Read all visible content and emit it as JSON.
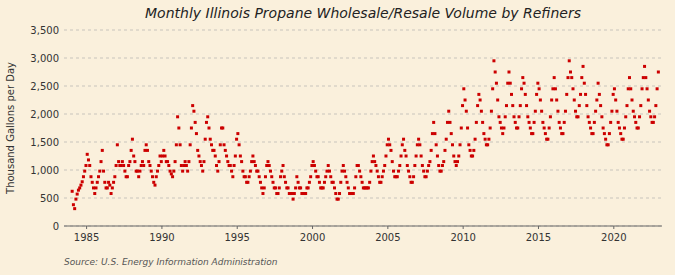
{
  "chart_data": {
    "type": "scatter",
    "title": "Monthly Illinois Propane Wholesale/Resale Volume by Refiners",
    "ylabel": "Thousand Gallons per Day",
    "source": "Source: U.S. Energy Information Administration",
    "color": "#CC0000",
    "marker": "square",
    "grid": true,
    "xlim": [
      1983.5,
      2023.2
    ],
    "xticks": [
      1985,
      1990,
      1995,
      2000,
      2005,
      2010,
      2015,
      2020
    ],
    "ylim": [
      0,
      3500
    ],
    "yticks": [
      0,
      500,
      {
        "value": 1000,
        "label": "1,000"
      },
      {
        "value": 1500,
        "label": "1,500"
      },
      {
        "value": 2000,
        "label": "2,000"
      },
      {
        "value": 2500,
        "label": "2,500"
      },
      {
        "value": 3000,
        "label": "3,000"
      },
      {
        "value": 3500,
        "label": "3,500"
      }
    ],
    "x": [
      1984.0416666666667,
      1984.125,
      1984.2083333333333,
      1984.2916666666667,
      1984.375,
      1984.4583333333333,
      1984.5416666666667,
      1984.625,
      1984.7083333333333,
      1984.7916666666667,
      1984.875,
      1984.9583333333333,
      1985.0416666666667,
      1985.125,
      1985.2083333333333,
      1985.2916666666667,
      1985.375,
      1985.4583333333333,
      1985.5416666666667,
      1985.625,
      1985.7083333333333,
      1985.7916666666667,
      1985.875,
      1985.9583333333333,
      1986.0416666666667,
      1986.125,
      1986.2083333333333,
      1986.2916666666667,
      1986.375,
      1986.4583333333333,
      1986.5416666666667,
      1986.625,
      1986.7083333333333,
      1986.7916666666667,
      1986.875,
      1986.9583333333333,
      1987.0416666666667,
      1987.125,
      1987.2083333333333,
      1987.2916666666667,
      1987.375,
      1987.4583333333333,
      1987.5416666666667,
      1987.625,
      1987.7083333333333,
      1987.7916666666667,
      1987.875,
      1987.9583333333333,
      1988.0416666666667,
      1988.125,
      1988.2083333333333,
      1988.2916666666667,
      1988.375,
      1988.4583333333333,
      1988.5416666666667,
      1988.625,
      1988.7083333333333,
      1988.7916666666667,
      1988.875,
      1988.9583333333333,
      1989.0416666666667,
      1989.125,
      1989.2083333333333,
      1989.2916666666667,
      1989.375,
      1989.4583333333333,
      1989.5416666666667,
      1989.625,
      1989.7083333333333,
      1989.7916666666667,
      1989.875,
      1989.9583333333333,
      1990.0416666666667,
      1990.125,
      1990.2083333333333,
      1990.2916666666667,
      1990.375,
      1990.4583333333333,
      1990.5416666666667,
      1990.625,
      1990.7083333333333,
      1990.7916666666667,
      1990.875,
      1990.9583333333333,
      1991.0416666666667,
      1991.125,
      1991.2083333333333,
      1991.2916666666667,
      1991.375,
      1991.4583333333333,
      1991.5416666666667,
      1991.625,
      1991.7083333333333,
      1991.7916666666667,
      1991.875,
      1991.9583333333333,
      1992.0416666666667,
      1992.125,
      1992.2083333333333,
      1992.2916666666667,
      1992.375,
      1992.4583333333333,
      1992.5416666666667,
      1992.625,
      1992.7083333333333,
      1992.7916666666667,
      1992.875,
      1992.9583333333333,
      1993.0416666666667,
      1993.125,
      1993.2083333333333,
      1993.2916666666667,
      1993.375,
      1993.4583333333333,
      1993.5416666666667,
      1993.625,
      1993.7083333333333,
      1993.7916666666667,
      1993.875,
      1993.9583333333333,
      1994.0416666666667,
      1994.125,
      1994.2083333333333,
      1994.2916666666667,
      1994.375,
      1994.4583333333333,
      1994.5416666666667,
      1994.625,
      1994.7083333333333,
      1994.7916666666667,
      1994.875,
      1994.9583333333333,
      1995.0416666666667,
      1995.125,
      1995.2083333333333,
      1995.2916666666667,
      1995.375,
      1995.4583333333333,
      1995.5416666666667,
      1995.625,
      1995.7083333333333,
      1995.7916666666667,
      1995.875,
      1995.9583333333333,
      1996.0416666666667,
      1996.125,
      1996.2083333333333,
      1996.2916666666667,
      1996.375,
      1996.4583333333333,
      1996.5416666666667,
      1996.625,
      1996.7083333333333,
      1996.7916666666667,
      1996.875,
      1996.9583333333333,
      1997.0416666666667,
      1997.125,
      1997.2083333333333,
      1997.2916666666667,
      1997.375,
      1997.4583333333333,
      1997.5416666666667,
      1997.625,
      1997.7083333333333,
      1997.7916666666667,
      1997.875,
      1997.9583333333333,
      1998.0416666666667,
      1998.125,
      1998.2083333333333,
      1998.2916666666667,
      1998.375,
      1998.4583333333333,
      1998.5416666666667,
      1998.625,
      1998.7083333333333,
      1998.7916666666667,
      1998.875,
      1998.9583333333333,
      1999.0416666666667,
      1999.125,
      1999.2083333333333,
      1999.2916666666667,
      1999.375,
      1999.4583333333333,
      1999.5416666666667,
      1999.625,
      1999.7083333333333,
      1999.7916666666667,
      1999.875,
      1999.9583333333333,
      2000.0416666666667,
      2000.125,
      2000.2083333333333,
      2000.2916666666667,
      2000.375,
      2000.4583333333333,
      2000.5416666666667,
      2000.625,
      2000.7083333333333,
      2000.7916666666667,
      2000.875,
      2000.9583333333333,
      2001.0416666666667,
      2001.125,
      2001.2083333333333,
      2001.2916666666667,
      2001.375,
      2001.4583333333333,
      2001.5416666666667,
      2001.625,
      2001.7083333333333,
      2001.7916666666667,
      2001.875,
      2001.9583333333333,
      2002.0416666666667,
      2002.125,
      2002.2083333333333,
      2002.2916666666667,
      2002.375,
      2002.4583333333333,
      2002.5416666666667,
      2002.625,
      2002.7083333333333,
      2002.7916666666667,
      2002.875,
      2002.9583333333333,
      2003.0416666666667,
      2003.125,
      2003.2083333333333,
      2003.2916666666667,
      2003.375,
      2003.4583333333333,
      2003.5416666666667,
      2003.625,
      2003.7083333333333,
      2003.7916666666667,
      2003.875,
      2003.9583333333333,
      2004.0416666666667,
      2004.125,
      2004.2083333333333,
      2004.2916666666667,
      2004.375,
      2004.4583333333333,
      2004.5416666666667,
      2004.625,
      2004.7083333333333,
      2004.7916666666667,
      2004.875,
      2004.9583333333333,
      2005.0416666666667,
      2005.125,
      2005.2083333333333,
      2005.2916666666667,
      2005.375,
      2005.4583333333333,
      2005.5416666666667,
      2005.625,
      2005.7083333333333,
      2005.7916666666667,
      2005.875,
      2005.9583333333333,
      2006.0416666666667,
      2006.125,
      2006.2083333333333,
      2006.2916666666667,
      2006.375,
      2006.4583333333333,
      2006.5416666666667,
      2006.625,
      2006.7083333333333,
      2006.7916666666667,
      2006.875,
      2006.9583333333333,
      2007.0416666666667,
      2007.125,
      2007.2083333333333,
      2007.2916666666667,
      2007.375,
      2007.4583333333333,
      2007.5416666666667,
      2007.625,
      2007.7083333333333,
      2007.7916666666667,
      2007.875,
      2007.9583333333333,
      2008.0416666666667,
      2008.125,
      2008.2083333333333,
      2008.2916666666667,
      2008.375,
      2008.4583333333333,
      2008.5416666666667,
      2008.625,
      2008.7083333333333,
      2008.7916666666667,
      2008.875,
      2008.9583333333333,
      2009.0416666666667,
      2009.125,
      2009.2083333333333,
      2009.2916666666667,
      2009.375,
      2009.4583333333333,
      2009.5416666666667,
      2009.625,
      2009.7083333333333,
      2009.7916666666667,
      2009.875,
      2009.9583333333333,
      2010.0416666666667,
      2010.125,
      2010.2083333333333,
      2010.2916666666667,
      2010.375,
      2010.4583333333333,
      2010.5416666666667,
      2010.625,
      2010.7083333333333,
      2010.7916666666667,
      2010.875,
      2010.9583333333333,
      2011.0416666666667,
      2011.125,
      2011.2083333333333,
      2011.2916666666667,
      2011.375,
      2011.4583333333333,
      2011.5416666666667,
      2011.625,
      2011.7083333333333,
      2011.7916666666667,
      2011.875,
      2011.9583333333333,
      2012.0416666666667,
      2012.125,
      2012.2083333333333,
      2012.2916666666667,
      2012.375,
      2012.4583333333333,
      2012.5416666666667,
      2012.625,
      2012.7083333333333,
      2012.7916666666667,
      2012.875,
      2012.9583333333333,
      2013.0416666666667,
      2013.125,
      2013.2083333333333,
      2013.2916666666667,
      2013.375,
      2013.4583333333333,
      2013.5416666666667,
      2013.625,
      2013.7083333333333,
      2013.7916666666667,
      2013.875,
      2013.9583333333333,
      2014.0416666666667,
      2014.125,
      2014.2083333333333,
      2014.2916666666667,
      2014.375,
      2014.4583333333333,
      2014.5416666666667,
      2014.625,
      2014.7083333333333,
      2014.7916666666667,
      2014.875,
      2014.9583333333333,
      2015.0416666666667,
      2015.125,
      2015.2083333333333,
      2015.2916666666667,
      2015.375,
      2015.4583333333333,
      2015.5416666666667,
      2015.625,
      2015.7083333333333,
      2015.7916666666667,
      2015.875,
      2015.9583333333333,
      2016.0416666666667,
      2016.125,
      2016.2083333333333,
      2016.2916666666667,
      2016.375,
      2016.4583333333333,
      2016.5416666666667,
      2016.625,
      2016.7083333333333,
      2016.7916666666667,
      2016.875,
      2016.9583333333333,
      2017.0416666666667,
      2017.125,
      2017.2083333333333,
      2017.2916666666667,
      2017.375,
      2017.4583333333333,
      2017.5416666666667,
      2017.625,
      2017.7083333333333,
      2017.7916666666667,
      2017.875,
      2017.9583333333333,
      2018.0416666666667,
      2018.125,
      2018.2083333333333,
      2018.2916666666667,
      2018.375,
      2018.4583333333333,
      2018.5416666666667,
      2018.625,
      2018.7083333333333,
      2018.7916666666667,
      2018.875,
      2018.9583333333333,
      2019.0416666666667,
      2019.125,
      2019.2083333333333,
      2019.2916666666667,
      2019.375,
      2019.4583333333333,
      2019.5416666666667,
      2019.625,
      2019.7083333333333,
      2019.7916666666667,
      2019.875,
      2019.9583333333333,
      2020.0416666666667,
      2020.125,
      2020.2083333333333,
      2020.2916666666667,
      2020.375,
      2020.4583333333333,
      2020.5416666666667,
      2020.625,
      2020.7083333333333,
      2020.7916666666667,
      2020.875,
      2020.9583333333333,
      2021.0416666666667,
      2021.125,
      2021.2083333333333,
      2021.2916666666667,
      2021.375,
      2021.4583333333333,
      2021.5416666666667,
      2021.625,
      2021.7083333333333,
      2021.7916666666667,
      2021.875,
      2021.9583333333333,
      2022.0416666666667,
      2022.125,
      2022.2083333333333,
      2022.2916666666667,
      2022.375,
      2022.4583333333333,
      2022.5416666666667,
      2022.625,
      2022.7083333333333,
      2022.7916666666667,
      2022.875,
      2022.9583333333333
    ],
    "values": [
      620,
      380,
      310,
      480,
      570,
      640,
      680,
      730,
      790,
      880,
      980,
      1080,
      1280,
      1180,
      1080,
      880,
      780,
      680,
      580,
      680,
      780,
      880,
      980,
      1150,
      1350,
      980,
      780,
      680,
      680,
      780,
      730,
      580,
      680,
      780,
      880,
      1080,
      1450,
      1150,
      1080,
      1080,
      1150,
      1080,
      980,
      880,
      880,
      1080,
      1150,
      1350,
      1550,
      1250,
      1150,
      980,
      980,
      880,
      980,
      1080,
      1150,
      1080,
      1350,
      1450,
      1350,
      1150,
      1080,
      980,
      880,
      780,
      730,
      880,
      980,
      1080,
      1250,
      1150,
      1250,
      1350,
      1250,
      1150,
      1150,
      1080,
      980,
      930,
      880,
      980,
      1150,
      1450,
      1950,
      1750,
      1450,
      1080,
      980,
      1080,
      1150,
      1080,
      980,
      1150,
      1450,
      1750,
      2150,
      2050,
      1850,
      1650,
      1350,
      1250,
      1150,
      1080,
      980,
      1150,
      1550,
      1850,
      1950,
      1750,
      1550,
      1450,
      1350,
      1350,
      1250,
      1080,
      980,
      1150,
      1450,
      1750,
      1750,
      1450,
      1350,
      1250,
      1150,
      1080,
      1080,
      980,
      880,
      1080,
      1250,
      1550,
      1650,
      1450,
      1250,
      1150,
      980,
      880,
      880,
      780,
      780,
      880,
      980,
      1150,
      1250,
      1150,
      1080,
      980,
      980,
      880,
      780,
      680,
      580,
      680,
      880,
      1080,
      1150,
      1080,
      980,
      880,
      780,
      680,
      680,
      580,
      580,
      680,
      880,
      980,
      1080,
      880,
      780,
      680,
      680,
      580,
      580,
      580,
      480,
      580,
      680,
      880,
      780,
      680,
      680,
      580,
      580,
      580,
      580,
      680,
      680,
      780,
      880,
      1080,
      1150,
      1080,
      980,
      880,
      880,
      780,
      680,
      680,
      680,
      780,
      880,
      980,
      1080,
      980,
      880,
      780,
      780,
      680,
      580,
      480,
      480,
      580,
      780,
      980,
      1080,
      980,
      880,
      780,
      680,
      580,
      580,
      580,
      580,
      680,
      880,
      1080,
      1080,
      980,
      880,
      780,
      680,
      680,
      680,
      680,
      680,
      780,
      980,
      1150,
      1250,
      1150,
      1080,
      980,
      880,
      780,
      780,
      880,
      980,
      1080,
      1250,
      1450,
      1550,
      1450,
      1350,
      1150,
      980,
      880,
      880,
      880,
      980,
      1080,
      1250,
      1450,
      1550,
      1350,
      1250,
      1080,
      980,
      880,
      780,
      780,
      880,
      1080,
      1250,
      1450,
      1550,
      1450,
      1250,
      1080,
      980,
      880,
      880,
      980,
      1080,
      1150,
      1350,
      1650,
      1850,
      1650,
      1450,
      1250,
      1080,
      980,
      980,
      1080,
      1150,
      1350,
      1550,
      1850,
      2050,
      1850,
      1650,
      1450,
      1250,
      1150,
      1080,
      1150,
      1250,
      1450,
      1750,
      2150,
      2450,
      2250,
      2050,
      1750,
      1450,
      1350,
      1250,
      1250,
      1350,
      1550,
      1850,
      2150,
      2350,
      2250,
      2050,
      1850,
      1650,
      1550,
      1450,
      1450,
      1550,
      1750,
      2050,
      2450,
      2950,
      2750,
      2550,
      2250,
      1950,
      1850,
      1750,
      1650,
      1750,
      1950,
      2150,
      2550,
      2750,
      2550,
      2350,
      2150,
      1950,
      1850,
      1750,
      1750,
      1950,
      2150,
      2450,
      2650,
      2550,
      2350,
      2150,
      1950,
      1850,
      1750,
      1650,
      1650,
      1850,
      2050,
      2350,
      2550,
      2450,
      2250,
      2050,
      1850,
      1750,
      1650,
      1550,
      1550,
      1750,
      1950,
      2250,
      2450,
      2650,
      2450,
      2250,
      2050,
      1850,
      1750,
      1650,
      1650,
      1850,
      2050,
      2350,
      2650,
      2950,
      2750,
      2650,
      2450,
      2250,
      2050,
      1950,
      1950,
      2150,
      2350,
      2650,
      2850,
      2550,
      2350,
      2150,
      1950,
      1850,
      1750,
      1650,
      1650,
      1850,
      2050,
      2250,
      2550,
      2350,
      2150,
      1950,
      1750,
      1650,
      1550,
      1450,
      1450,
      1650,
      1850,
      2050,
      2350,
      2450,
      2250,
      2050,
      1850,
      1750,
      1650,
      1550,
      1550,
      1750,
      1950,
      2150,
      2450,
      2650,
      2450,
      2250,
      2050,
      1950,
      1850,
      1750,
      1750,
      1950,
      2150,
      2450,
      2650,
      2850,
      2650,
      2450,
      2250,
      2050,
      1950,
      1850,
      1850,
      1950,
      2150,
      2450,
      2750
    ]
  }
}
